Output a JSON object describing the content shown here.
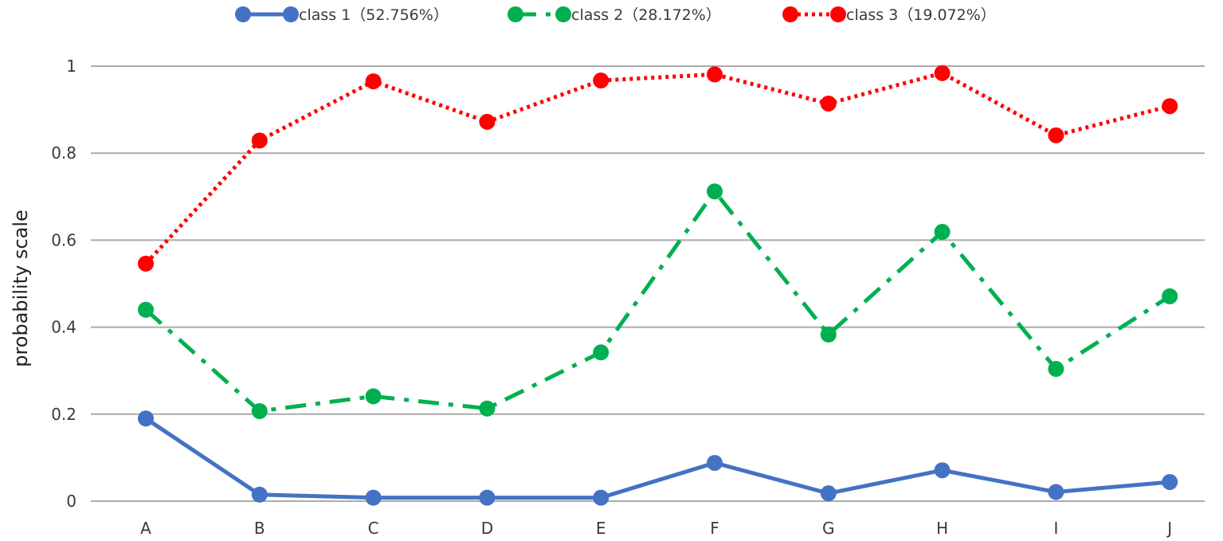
{
  "chart_data": {
    "type": "line",
    "title": "",
    "xlabel": "",
    "ylabel": "probability scale",
    "categories": [
      "A",
      "B",
      "C",
      "D",
      "E",
      "F",
      "G",
      "H",
      "I",
      "J"
    ],
    "ylim": [
      0,
      1
    ],
    "yticks": [
      "0",
      "0.2",
      "0.4",
      "0.6",
      "0.8",
      "1"
    ],
    "grid": true,
    "legend_position": "top",
    "series": [
      {
        "name": "class 1（52.756%）",
        "color": "#4472C4",
        "line_style": "solid",
        "values": [
          0.19,
          0.015,
          0.008,
          0.008,
          0.008,
          0.088,
          0.018,
          0.071,
          0.021,
          0.044
        ]
      },
      {
        "name": "class 2（28.172%）",
        "color": "#00B050",
        "line_style": "dash-dot",
        "values": [
          0.44,
          0.207,
          0.241,
          0.213,
          0.342,
          0.712,
          0.383,
          0.619,
          0.304,
          0.471
        ]
      },
      {
        "name": "class 3（19.072%）",
        "color": "#FF0000",
        "line_style": "dotted",
        "values": [
          0.546,
          0.829,
          0.965,
          0.872,
          0.967,
          0.981,
          0.914,
          0.984,
          0.841,
          0.908
        ]
      }
    ]
  }
}
